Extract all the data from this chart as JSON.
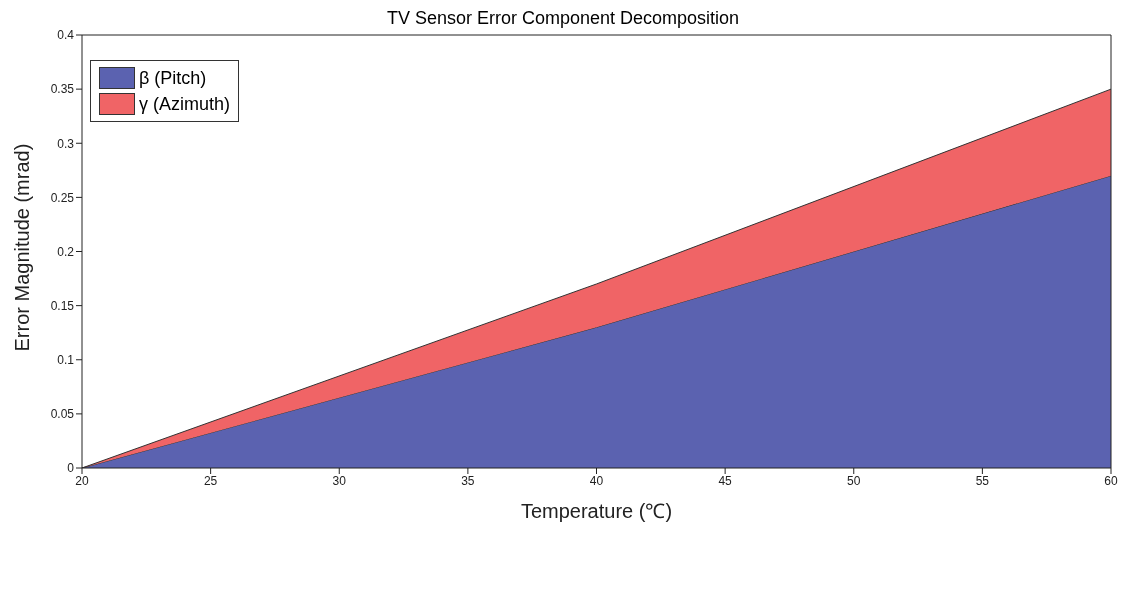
{
  "chart_data": {
    "type": "area",
    "stacked": true,
    "title": "TV Sensor Error Component Decomposition",
    "xlabel": "Temperature (℃)",
    "ylabel": "Error Magnitude (mrad)",
    "x": [
      20,
      40,
      60
    ],
    "series": [
      {
        "name": "β (Pitch)",
        "color": "#5b62b0",
        "values": [
          0,
          0.13,
          0.27
        ]
      },
      {
        "name": "γ (Azimuth)",
        "color": "#f06466",
        "values": [
          0,
          0.04,
          0.08
        ]
      }
    ],
    "xlim": [
      20,
      60
    ],
    "xticks": [
      20,
      25,
      30,
      35,
      40,
      45,
      50,
      55,
      60
    ],
    "ylim": [
      0,
      0.4
    ],
    "yticks": [
      0,
      0.05,
      0.1,
      0.15,
      0.2,
      0.25,
      0.3,
      0.35,
      0.4
    ],
    "grid": false,
    "legend": "top left"
  }
}
